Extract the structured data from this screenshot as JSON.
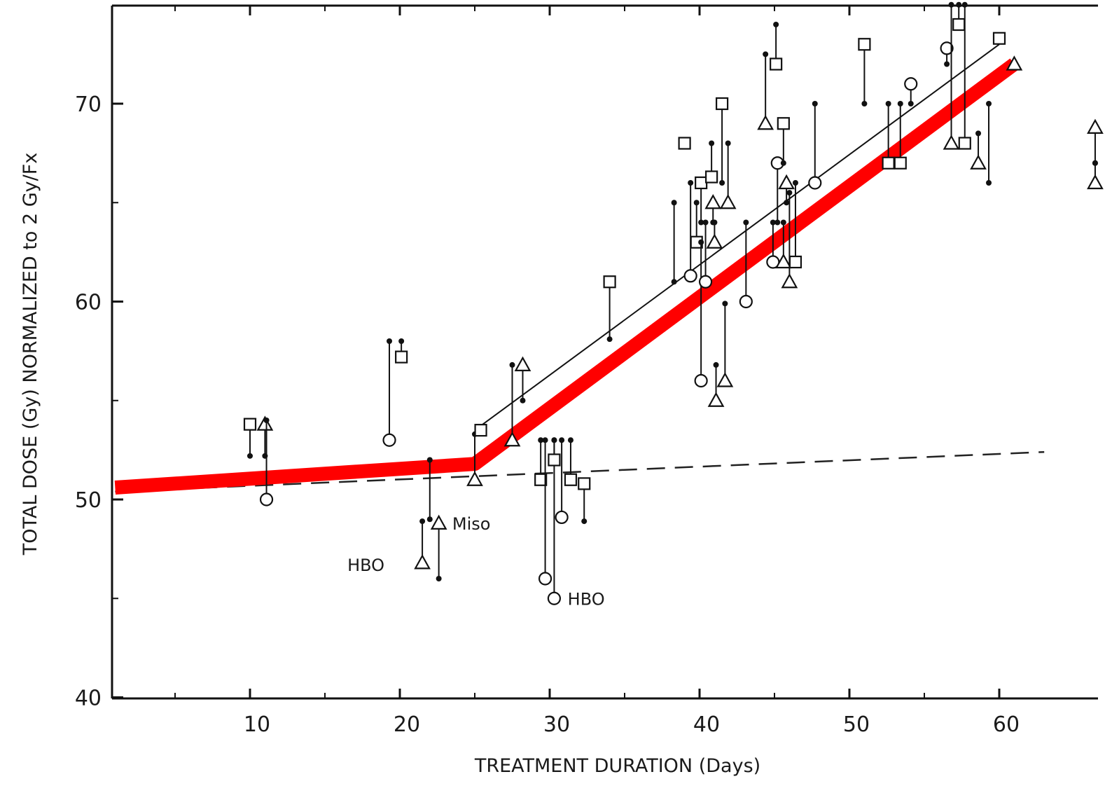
{
  "chart_data": {
    "type": "scatter",
    "xlabel": "TREATMENT DURATION (Days)",
    "ylabel": "TOTAL DOSE (Gy) NORMALIZED to 2 Gy/Fx",
    "xlim": [
      1,
      67
    ],
    "ylim": [
      40,
      75
    ],
    "x_ticks": [
      10,
      20,
      30,
      40,
      50,
      60
    ],
    "x_tick_labels": [
      "10",
      "20",
      "30",
      "40",
      "50",
      "60"
    ],
    "y_ticks": [
      40,
      50,
      60,
      70
    ],
    "y_tick_labels": [
      "40",
      "50",
      "60",
      "70"
    ],
    "grid": false,
    "red_fit": [
      [
        1,
        50.6
      ],
      [
        25,
        51.8
      ],
      [
        61,
        72
      ]
    ],
    "thin_fit": [
      [
        25,
        53.5
      ],
      [
        60,
        73
      ]
    ],
    "dashed_fit": [
      [
        1,
        50.4
      ],
      [
        63,
        52.4
      ]
    ],
    "annotations": [
      {
        "text": "Miso",
        "x": 23.5,
        "y": 48.8
      },
      {
        "text": "HBO",
        "x": 16.5,
        "y": 46.7
      },
      {
        "text": "HBO",
        "x": 31.2,
        "y": 45.0
      }
    ],
    "points": [
      {
        "x": 10,
        "y": 53.8,
        "m": "square",
        "y2": 52.2
      },
      {
        "x": 11,
        "y": 53.8,
        "m": "triangle",
        "y2": 52.2
      },
      {
        "x": 11.1,
        "y": 50.0,
        "m": "circle",
        "y2": 54.0
      },
      {
        "x": 19.3,
        "y": 53.0,
        "m": "circle",
        "y2": 58.0
      },
      {
        "x": 20.1,
        "y": 57.2,
        "m": "square",
        "y2": 58.0
      },
      {
        "x": 21.5,
        "y": 46.8,
        "m": "triangle",
        "y2": 48.9
      },
      {
        "x": 22.6,
        "y": 48.8,
        "m": "triangle",
        "y2": 46.0
      },
      {
        "x": 22.0,
        "y": 49.0,
        "m": "dot",
        "y2": 52.0
      },
      {
        "x": 25.0,
        "y": 51.0,
        "m": "triangle",
        "y2": 53.3
      },
      {
        "x": 25.4,
        "y": 53.5,
        "m": "square"
      },
      {
        "x": 27.5,
        "y": 53.0,
        "m": "triangle",
        "y2": 56.8
      },
      {
        "x": 28.2,
        "y": 56.8,
        "m": "triangle",
        "y2": 55.0
      },
      {
        "x": 29.4,
        "y": 51.0,
        "m": "square",
        "y2": 53.0
      },
      {
        "x": 29.7,
        "y": 46.0,
        "m": "circle",
        "y2": 53.0
      },
      {
        "x": 30.3,
        "y": 45.0,
        "m": "circle",
        "y2": 53.0
      },
      {
        "x": 30.3,
        "y": 52.0,
        "m": "square",
        "y2": 53.0
      },
      {
        "x": 30.8,
        "y": 49.1,
        "m": "circle",
        "y2": 53.0
      },
      {
        "x": 31.4,
        "y": 51.0,
        "m": "square",
        "y2": 53.0
      },
      {
        "x": 32.3,
        "y": 50.8,
        "m": "square",
        "y2": 48.9
      },
      {
        "x": 34.0,
        "y": 61.0,
        "m": "square",
        "y2": 58.1
      },
      {
        "x": 38.3,
        "y": 61.0,
        "m": "dot",
        "y2": 65.0
      },
      {
        "x": 39.0,
        "y": 68.0,
        "m": "square"
      },
      {
        "x": 39.4,
        "y": 61.3,
        "m": "circle",
        "y2": 66.0
      },
      {
        "x": 39.8,
        "y": 63.0,
        "m": "square",
        "y2": 65.0
      },
      {
        "x": 40.1,
        "y": 66.0,
        "m": "square",
        "y2": 64.0
      },
      {
        "x": 40.1,
        "y": 56.0,
        "m": "circle",
        "y2": 63.0
      },
      {
        "x": 40.4,
        "y": 61.0,
        "m": "circle",
        "y2": 64.0
      },
      {
        "x": 40.8,
        "y": 66.3,
        "m": "square",
        "y2": 68.0
      },
      {
        "x": 40.9,
        "y": 65.0,
        "m": "triangle",
        "y2": 64.0
      },
      {
        "x": 41.0,
        "y": 63.0,
        "m": "triangle",
        "y2": 64.0
      },
      {
        "x": 41.1,
        "y": 55.0,
        "m": "triangle",
        "y2": 56.8
      },
      {
        "x": 41.5,
        "y": 70.0,
        "m": "square",
        "y2": 66.0
      },
      {
        "x": 41.7,
        "y": 56.0,
        "m": "triangle",
        "y2": 59.9
      },
      {
        "x": 41.9,
        "y": 65.0,
        "m": "triangle",
        "y2": 68.0
      },
      {
        "x": 43.1,
        "y": 60.0,
        "m": "circle",
        "y2": 64.0
      },
      {
        "x": 44.4,
        "y": 69.0,
        "m": "triangle",
        "y2": 72.5
      },
      {
        "x": 44.9,
        "y": 62.0,
        "m": "circle",
        "y2": 64.0
      },
      {
        "x": 45.1,
        "y": 72.0,
        "m": "square",
        "y2": 74.0
      },
      {
        "x": 45.2,
        "y": 67.0,
        "m": "circle",
        "y2": 64.0
      },
      {
        "x": 45.6,
        "y": 69.0,
        "m": "square",
        "y2": 67.0
      },
      {
        "x": 45.8,
        "y": 66.0,
        "m": "triangle",
        "y2": 65.0
      },
      {
        "x": 45.6,
        "y": 62.0,
        "m": "triangle",
        "y2": 64.0
      },
      {
        "x": 46.0,
        "y": 61.0,
        "m": "triangle",
        "y2": 65.5
      },
      {
        "x": 46.4,
        "y": 62.0,
        "m": "square",
        "y2": 66.0
      },
      {
        "x": 47.7,
        "y": 66.0,
        "m": "circle",
        "y2": 70.0
      },
      {
        "x": 51.0,
        "y": 73.0,
        "m": "square",
        "y2": 70.0
      },
      {
        "x": 52.6,
        "y": 67.0,
        "m": "square",
        "y2": 70.0
      },
      {
        "x": 53.4,
        "y": 67.0,
        "m": "square",
        "y2": 70.0
      },
      {
        "x": 54.1,
        "y": 71.0,
        "m": "circle",
        "y2": 70.0
      },
      {
        "x": 56.5,
        "y": 72.8,
        "m": "circle",
        "y2": 72.0
      },
      {
        "x": 56.8,
        "y": 68.0,
        "m": "triangle",
        "y2": 75.0
      },
      {
        "x": 57.3,
        "y": 74.0,
        "m": "square",
        "y2": 75.0
      },
      {
        "x": 57.7,
        "y": 68.0,
        "m": "square",
        "y2": 75.0
      },
      {
        "x": 58.6,
        "y": 67.0,
        "m": "triangle",
        "y2": 68.5
      },
      {
        "x": 59.3,
        "y": 66.0,
        "m": "dot",
        "y2": 70.0
      },
      {
        "x": 60.0,
        "y": 73.3,
        "m": "square"
      },
      {
        "x": 61.0,
        "y": 72.0,
        "m": "triangle"
      },
      {
        "x": 66.4,
        "y": 68.8,
        "m": "triangle",
        "y2": 67.0
      },
      {
        "x": 66.4,
        "y": 66.0,
        "m": "triangle",
        "y2": 67.0
      }
    ]
  }
}
